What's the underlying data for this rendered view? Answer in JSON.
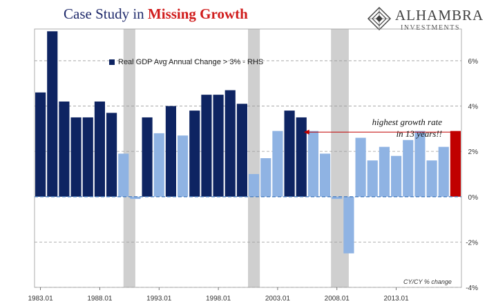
{
  "header": {
    "title_prefix": "Case Study in ",
    "title_accent": "Missing Growth"
  },
  "logo": {
    "name": "ALHAMBRA",
    "sub": "INVESTMENTS",
    "mark_icon": "alhambra-diamond-icon"
  },
  "colors": {
    "above_threshold": "#0e2462",
    "below_threshold": "#8fb3e3",
    "highlight": "#c00000",
    "recession": "#cfcfcf",
    "arrow": "#c00000",
    "zero_line": "#4a7fc1"
  },
  "chart_data": {
    "type": "bar",
    "legend": [
      "Real GDP Avg Annual Change > 3% - RHS"
    ],
    "legend_position": "top-left",
    "y_axis_side": "right",
    "ylim": [
      -4,
      7.4
    ],
    "y_ticks": [
      -4,
      -2,
      0,
      2,
      4,
      6
    ],
    "y_tick_labels": [
      "-4%",
      "-2%",
      "0%",
      "2%",
      "4%",
      "6%"
    ],
    "x_tick_labels": [
      "1983.01",
      "1988.01",
      "1993.01",
      "1998.01",
      "2003.01",
      "2008.01",
      "2013.01"
    ],
    "x_tick_years": [
      1983,
      1988,
      1993,
      1998,
      2003,
      2008,
      2013
    ],
    "footnote": "CY/CY % change",
    "grid": "horizontal dashed",
    "years": [
      1983,
      1984,
      1985,
      1986,
      1987,
      1988,
      1989,
      1990,
      1991,
      1992,
      1993,
      1994,
      1995,
      1996,
      1997,
      1998,
      1999,
      2000,
      2001,
      2002,
      2003,
      2004,
      2005,
      2006,
      2007,
      2008,
      2009,
      2010,
      2011,
      2012,
      2013,
      2014,
      2015,
      2016,
      2017,
      2018
    ],
    "values": [
      4.6,
      7.3,
      4.2,
      3.5,
      3.5,
      4.2,
      3.7,
      1.9,
      -0.1,
      3.5,
      2.8,
      4.0,
      2.7,
      3.8,
      4.5,
      4.5,
      4.7,
      4.1,
      1.0,
      1.7,
      2.9,
      3.8,
      3.5,
      2.9,
      1.9,
      -0.1,
      -2.5,
      2.6,
      1.6,
      2.2,
      1.8,
      2.5,
      2.9,
      1.6,
      2.2,
      2.9
    ],
    "categories": [
      "above",
      "above",
      "above",
      "above",
      "above",
      "above",
      "above",
      "below",
      "below",
      "above",
      "below",
      "above",
      "below",
      "above",
      "above",
      "above",
      "above",
      "above",
      "below",
      "below",
      "below",
      "above",
      "above",
      "below",
      "below",
      "below",
      "below",
      "below",
      "below",
      "below",
      "below",
      "below",
      "below",
      "below",
      "below",
      "highlight"
    ],
    "recessions": [
      [
        1990.5,
        1991.5
      ],
      [
        2001,
        2002
      ],
      [
        2008,
        2009.5
      ]
    ],
    "annotation": {
      "lines": [
        "highest growth rate",
        "in 13 years!!"
      ],
      "arrow_from_year": 2018,
      "arrow_to_year": 2005.7,
      "arrow_value": 2.85
    }
  }
}
